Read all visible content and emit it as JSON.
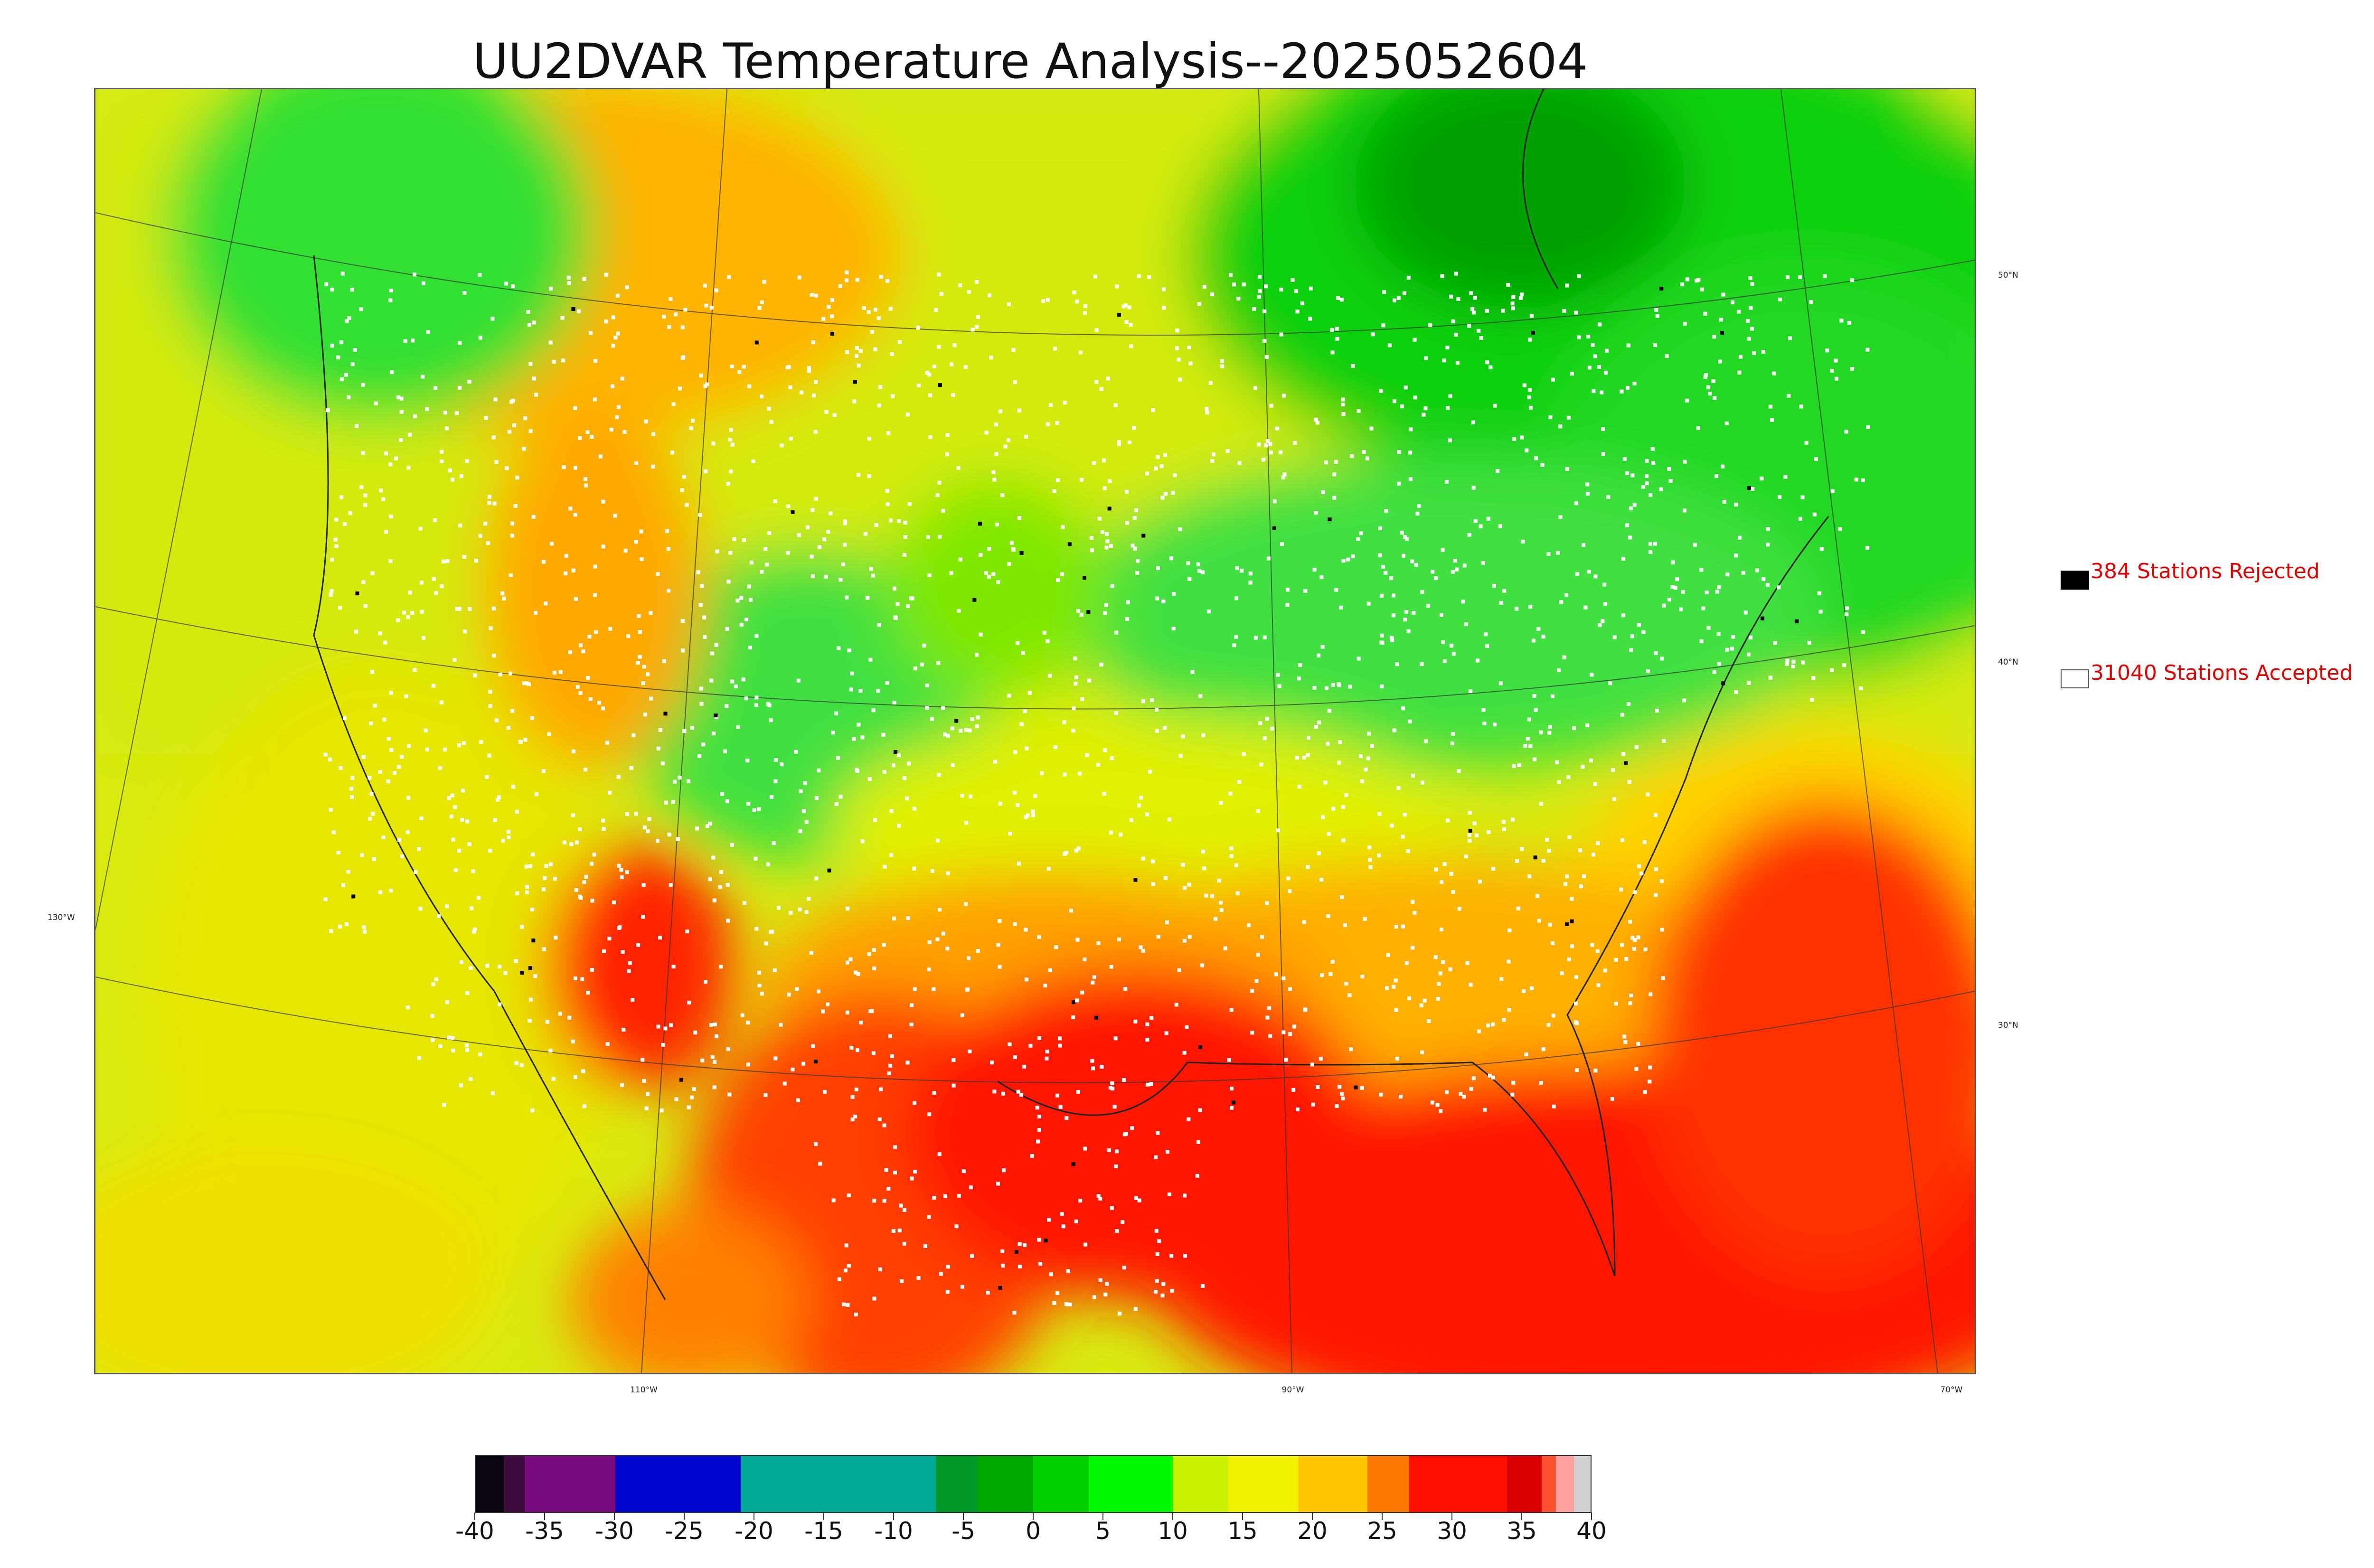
{
  "title": "UU2DVAR Temperature Analysis--2025052604",
  "legend": {
    "rejected": {
      "label": "384 Stations Rejected",
      "swatch": "#000000"
    },
    "accepted": {
      "label": "31040 Stations Accepted",
      "swatch": "#ffffff"
    }
  },
  "longitude_labels": [
    "130°W",
    "110°W",
    "90°W",
    "70°W"
  ],
  "latitude_labels": [
    "50°N",
    "40°N",
    "30°N"
  ],
  "colorbar": {
    "ticks": [
      "-40",
      "-35",
      "-30",
      "-25",
      "-20",
      "-15",
      "-10",
      "-5",
      "0",
      "5",
      "10",
      "15",
      "20",
      "25",
      "30",
      "35",
      "40"
    ],
    "range": [
      -40,
      40
    ],
    "colors": [
      {
        "from": -40,
        "to": -38,
        "color": "#0c0410"
      },
      {
        "from": -38,
        "to": -36.5,
        "color": "#3d0c3d"
      },
      {
        "from": -36.5,
        "to": -30,
        "color": "#780a80"
      },
      {
        "from": -30,
        "to": -21,
        "color": "#0008d0"
      },
      {
        "from": -21,
        "to": -7,
        "color": "#00a898"
      },
      {
        "from": -7,
        "to": -4,
        "color": "#009828"
      },
      {
        "from": -4,
        "to": 0,
        "color": "#00a800"
      },
      {
        "from": 0,
        "to": 4,
        "color": "#00d000"
      },
      {
        "from": 4,
        "to": 10,
        "color": "#00f800"
      },
      {
        "from": 10,
        "to": 14,
        "color": "#c8f000"
      },
      {
        "from": 14,
        "to": 19,
        "color": "#f0f000"
      },
      {
        "from": 19,
        "to": 24,
        "color": "#ffc800"
      },
      {
        "from": 24,
        "to": 27,
        "color": "#ff7800"
      },
      {
        "from": 27,
        "to": 34,
        "color": "#ff1000"
      },
      {
        "from": 34,
        "to": 36.5,
        "color": "#d80000"
      },
      {
        "from": 36.5,
        "to": 37.5,
        "color": "#ff5030"
      },
      {
        "from": 37.5,
        "to": 38.8,
        "color": "#ffa0a0"
      },
      {
        "from": 38.8,
        "to": 40,
        "color": "#d0d0d0"
      }
    ]
  }
}
